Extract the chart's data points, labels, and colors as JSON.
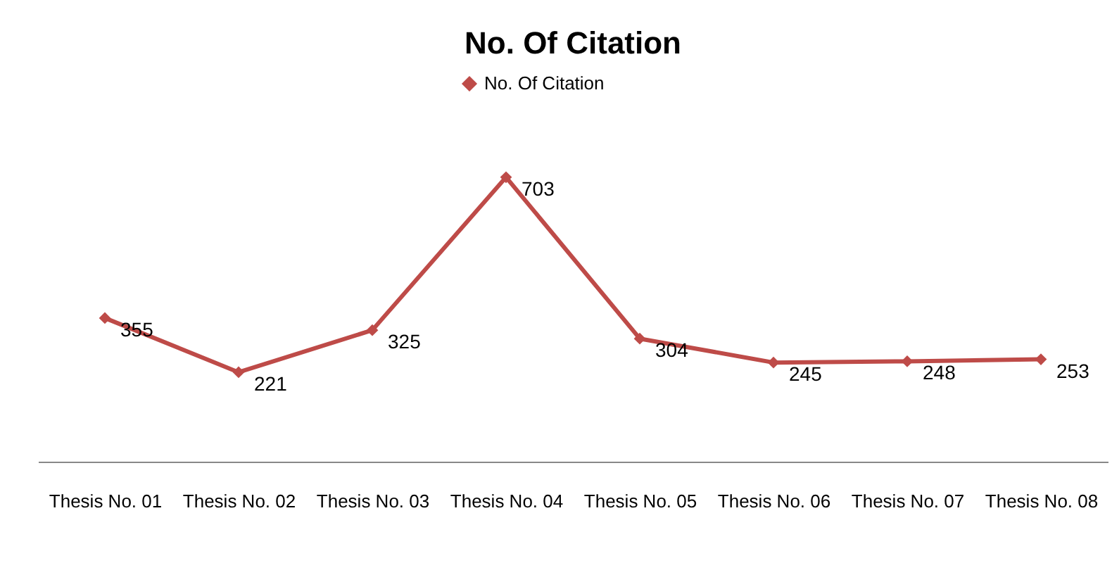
{
  "chart_data": {
    "type": "line",
    "title": "No. Of Citation",
    "categories": [
      "Thesis No. 01",
      "Thesis No. 02",
      "Thesis No. 03",
      "Thesis No. 04",
      "Thesis No. 05",
      "Thesis No. 06",
      "Thesis No. 07",
      "Thesis No. 08"
    ],
    "series": [
      {
        "name": "No. Of Citation",
        "color": "#be4b48",
        "values": [
          355,
          221,
          325,
          703,
          304,
          245,
          248,
          253
        ]
      }
    ],
    "data_labels": true,
    "legend": "top",
    "grid": false,
    "marker": "diamond",
    "line_style": "solid",
    "tick_labels": "x"
  }
}
